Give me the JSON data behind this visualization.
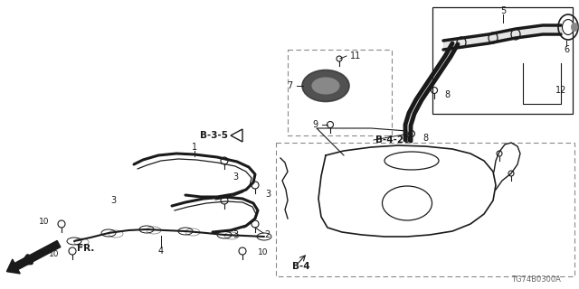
{
  "diagram_code": "TG74B0300A",
  "bg": "#ffffff",
  "lc": "#1a1a1a",
  "gray": "#888888",
  "figsize": [
    6.4,
    3.2
  ],
  "dpi": 100,
  "xlim": [
    0,
    640
  ],
  "ylim": [
    0,
    320
  ]
}
